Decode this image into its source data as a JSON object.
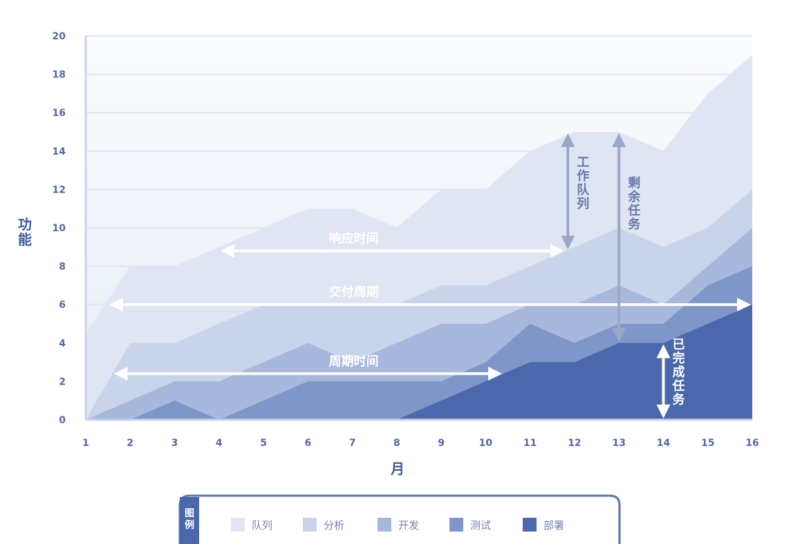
{
  "chart_data": {
    "type": "area",
    "stacked": true,
    "x": [
      1,
      2,
      3,
      4,
      5,
      6,
      7,
      8,
      9,
      10,
      11,
      12,
      13,
      14,
      15,
      16
    ],
    "xlabel": "月",
    "ylabel": "功能",
    "xlim": [
      1,
      16
    ],
    "ylim": [
      0,
      20
    ],
    "yticks": [
      0,
      2,
      4,
      6,
      8,
      10,
      12,
      14,
      16,
      18,
      20
    ],
    "grid": true,
    "series_cumulative": [
      {
        "name": "部署",
        "color": "#4a68ab",
        "values": [
          0,
          0,
          0,
          0,
          0,
          0,
          0,
          0,
          1,
          2,
          3,
          3,
          4,
          4,
          5,
          6
        ]
      },
      {
        "name": "测试",
        "color": "#7f97c8",
        "values": [
          0,
          0,
          1,
          0,
          1,
          2,
          2,
          2,
          2,
          3,
          5,
          4,
          5,
          5,
          7,
          8
        ]
      },
      {
        "name": "开发",
        "color": "#a7b8dc",
        "values": [
          0,
          1,
          2,
          2,
          3,
          4,
          3,
          4,
          5,
          5,
          6,
          6,
          7,
          6,
          8,
          10
        ]
      },
      {
        "name": "分析",
        "color": "#c9d4ea",
        "values": [
          0,
          4,
          4,
          5,
          6,
          6,
          6,
          6,
          7,
          7,
          8,
          9,
          10,
          9,
          10,
          12
        ]
      },
      {
        "name": "队列",
        "color": "#dfe5f2",
        "values": [
          4.5,
          8,
          8,
          9,
          10,
          11,
          11,
          10,
          12,
          12,
          14,
          15,
          15,
          14,
          17,
          19
        ]
      }
    ],
    "annotations": [
      {
        "text": "响应时间",
        "kind": "horizontal",
        "from_x": 4,
        "to_x": 11.8,
        "y": 8.8
      },
      {
        "text": "交付周期",
        "kind": "horizontal",
        "from_x": 1.5,
        "to_x": 16,
        "y": 6
      },
      {
        "text": "周期时间",
        "kind": "horizontal",
        "from_x": 1.6,
        "to_x": 10.4,
        "y": 2.4
      },
      {
        "text": "工作队列",
        "kind": "vertical",
        "x": 11.85,
        "from_y": 8.8,
        "to_y": 15
      },
      {
        "text": "剩余任务",
        "kind": "vertical",
        "x": 13,
        "from_y": 4,
        "to_y": 15
      },
      {
        "text": "已完成任务",
        "kind": "vertical",
        "x": 14,
        "from_y": 0,
        "to_y": 4
      }
    ],
    "legend": {
      "title": "图例",
      "placement": "bottom",
      "items": [
        "队列",
        "分析",
        "开发",
        "测试",
        "部署"
      ]
    }
  },
  "colors": {
    "grid": "#dfe4ef",
    "axis": "#c9d2e6",
    "plot_bg_top": "#fbfcfe",
    "plot_bg_bottom": "#e6ecf6",
    "arrow": "#ffffff",
    "arrow_dark": "#9aa8c8",
    "legend_border": "#5a74b0",
    "legend_title_bg": "#4a68ab"
  }
}
